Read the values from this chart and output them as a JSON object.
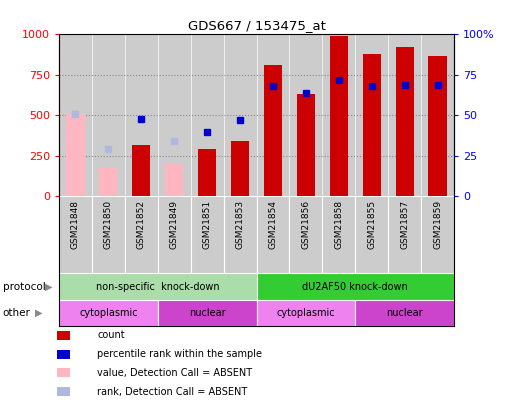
{
  "title": "GDS667 / 153475_at",
  "samples": [
    "GSM21848",
    "GSM21850",
    "GSM21852",
    "GSM21849",
    "GSM21851",
    "GSM21853",
    "GSM21854",
    "GSM21856",
    "GSM21858",
    "GSM21855",
    "GSM21857",
    "GSM21859"
  ],
  "count_values": [
    null,
    null,
    320,
    null,
    290,
    340,
    810,
    630,
    990,
    880,
    920,
    865
  ],
  "count_absent": [
    510,
    175,
    null,
    200,
    null,
    null,
    null,
    null,
    null,
    null,
    null,
    null
  ],
  "rank_values": [
    null,
    null,
    480,
    null,
    400,
    470,
    680,
    640,
    720,
    680,
    685,
    690
  ],
  "rank_absent": [
    510,
    290,
    null,
    340,
    null,
    null,
    null,
    null,
    null,
    null,
    null,
    null
  ],
  "ylim_left": [
    0,
    1000
  ],
  "ylim_right": [
    0,
    100
  ],
  "left_ticks": [
    0,
    250,
    500,
    750,
    1000
  ],
  "right_ticks": [
    0,
    25,
    50,
    75,
    100
  ],
  "protocol_groups": [
    {
      "label": "non-specific  knock-down",
      "start": 0,
      "end": 6,
      "color": "#aaddaa"
    },
    {
      "label": "dU2AF50 knock-down",
      "start": 6,
      "end": 12,
      "color": "#33cc33"
    }
  ],
  "other_groups": [
    {
      "label": "cytoplasmic",
      "start": 0,
      "end": 3,
      "color": "#ee82ee"
    },
    {
      "label": "nuclear",
      "start": 3,
      "end": 6,
      "color": "#cc44cc"
    },
    {
      "label": "cytoplasmic",
      "start": 6,
      "end": 9,
      "color": "#ee82ee"
    },
    {
      "label": "nuclear",
      "start": 9,
      "end": 12,
      "color": "#cc44cc"
    }
  ],
  "bar_color_present": "#cc0000",
  "bar_color_absent": "#ffb6c1",
  "rank_color_present": "#0000cc",
  "rank_color_absent": "#b0b8dd",
  "bar_width": 0.55,
  "legend_items": [
    {
      "label": "count",
      "color": "#cc0000"
    },
    {
      "label": "percentile rank within the sample",
      "color": "#0000cc"
    },
    {
      "label": "value, Detection Call = ABSENT",
      "color": "#ffb6c1"
    },
    {
      "label": "rank, Detection Call = ABSENT",
      "color": "#b0b8dd"
    }
  ],
  "bg_color": "#ffffff",
  "grid_color": "#888888",
  "sample_bg_color": "#cccccc",
  "protocol_label": "protocol",
  "other_label": "other",
  "arrow_char": "▶"
}
